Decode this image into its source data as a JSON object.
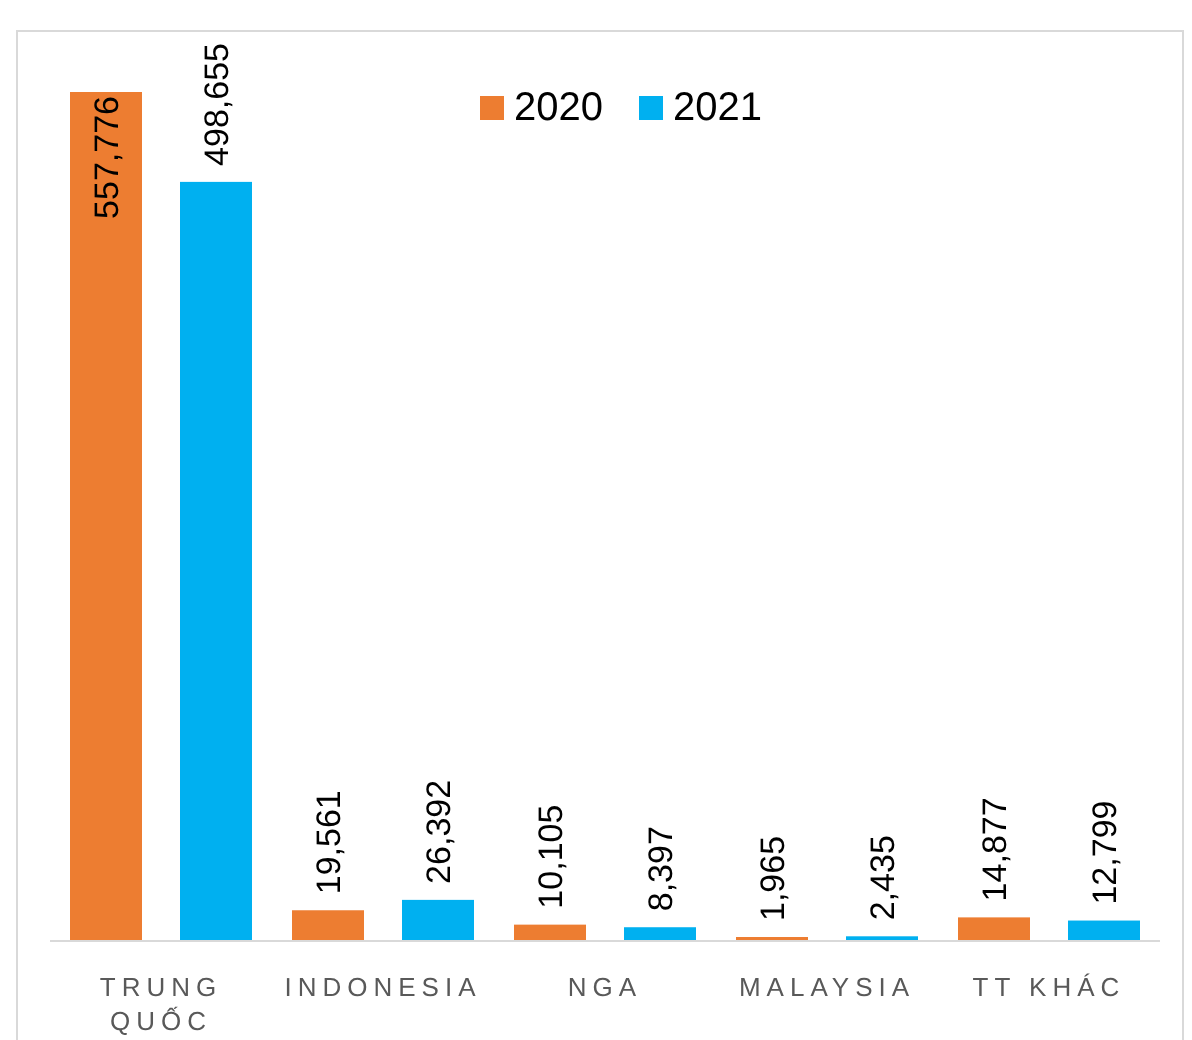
{
  "chart_data": {
    "type": "bar",
    "categories": [
      "TRUNG QUỐC",
      "INDONESIA",
      "NGA",
      "MALAYSIA",
      "TT KHÁC"
    ],
    "series": [
      {
        "name": "2020",
        "color": "#ed7d31",
        "values": [
          557776,
          19561,
          10105,
          1965,
          14877
        ],
        "value_labels": [
          "557,776",
          "19,561",
          "10,105",
          "1,965",
          "14,877"
        ]
      },
      {
        "name": "2021",
        "color": "#00b0f0",
        "values": [
          498655,
          26392,
          8397,
          2435,
          12799
        ],
        "value_labels": [
          "498,655",
          "26,392",
          "8,397",
          "2,435",
          "12,799"
        ]
      }
    ],
    "legend": "top"
  }
}
